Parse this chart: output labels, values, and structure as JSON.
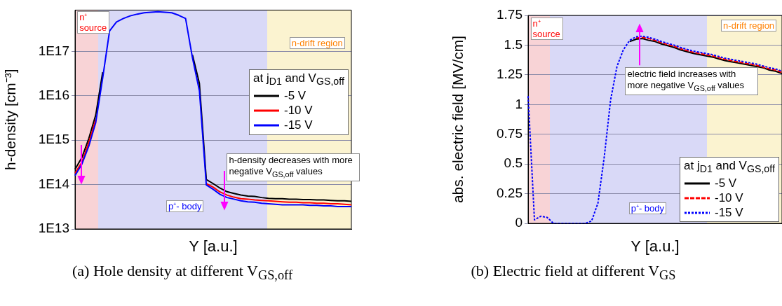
{
  "chart_data": [
    {
      "type": "line",
      "xlabel": "Y [a.u.]",
      "ylabel": "h-density [cm⁻³]",
      "legend_title": "at j$_{D1}$ and V$_{GS,off}$",
      "legend": "right",
      "log": "y",
      "grid": "y",
      "marker": "none",
      "tick_labels": "y",
      "categories": [
        null,
        null,
        null,
        null,
        null,
        null,
        null,
        null,
        null,
        null,
        null,
        null,
        null,
        null,
        null,
        null,
        null,
        null,
        null,
        null,
        null,
        null,
        null,
        null,
        null,
        null,
        null,
        null,
        null,
        null,
        null,
        null,
        null,
        null,
        null,
        null,
        null,
        null,
        null,
        null,
        null
      ],
      "ylim": [
        10000000000000.0,
        8.5e+17
      ],
      "yticks": [
        {
          "value": 10000000000000.0,
          "label": "1E13"
        },
        {
          "value": 100000000000000.0,
          "label": "1E14"
        },
        {
          "value": 1000000000000000.0,
          "label": "1E15"
        },
        {
          "value": 1e+16,
          "label": "1E16"
        },
        {
          "value": 1e+17,
          "label": "1E17"
        }
      ],
      "series": [
        {
          "name": "-5 V",
          "color": "#000000",
          "values": [
            220000000000000.0,
            410000000000000.0,
            1100000000000000.0,
            3700000000000000.0,
            3.4e+16,
            null,
            null,
            null,
            null,
            null,
            null,
            null,
            null,
            null,
            null,
            null,
            null,
            8.3e+16,
            1.9e+16,
            130000000000000.0,
            105000000000000.0,
            83000000000000.0,
            69000000000000.0,
            63000000000000.0,
            58000000000000.0,
            55000000000000.0,
            54000000000000.0,
            51000000000000.0,
            49000000000000.0,
            48000000000000.0,
            48000000000000.0,
            47000000000000.0,
            47000000000000.0,
            46000000000000.0,
            46000000000000.0,
            45000000000000.0,
            45000000000000.0,
            44000000000000.0,
            43000000000000.0,
            43000000000000.0,
            42000000000000.0
          ]
        },
        {
          "name": "-10 V",
          "color": "#ff0000",
          "values": [
            180000000000000.0,
            320000000000000.0,
            890000000000000.0,
            2900000000000000.0,
            null,
            null,
            null,
            null,
            null,
            null,
            null,
            null,
            null,
            null,
            null,
            null,
            null,
            null,
            null,
            105000000000000.0,
            87000000000000.0,
            68000000000000.0,
            58000000000000.0,
            52000000000000.0,
            48000000000000.0,
            47000000000000.0,
            45000000000000.0,
            44000000000000.0,
            43000000000000.0,
            42000000000000.0,
            41000000000000.0,
            40000000000000.0,
            40000000000000.0,
            39000000000000.0,
            39000000000000.0,
            38000000000000.0,
            38000000000000.0,
            37000000000000.0,
            37000000000000.0,
            36000000000000.0,
            35000000000000.0
          ]
        },
        {
          "name": "-15 V",
          "color": "#0000ff",
          "values": [
            160000000000000.0,
            290000000000000.0,
            740000000000000.0,
            2500000000000000.0,
            2.5e+16,
            2.9e+17,
            4.6e+17,
            5.5e+17,
            6.3e+17,
            6.9e+17,
            7.4e+17,
            7.6e+17,
            7.8e+17,
            7.6e+17,
            7.4e+17,
            6.5e+17,
            5.5e+17,
            7.1e+16,
            1.3e+16,
            98000000000000.0,
            78000000000000.0,
            60000000000000.0,
            51000000000000.0,
            47000000000000.0,
            43000000000000.0,
            41000000000000.0,
            40000000000000.0,
            38000000000000.0,
            37000000000000.0,
            36000000000000.0,
            35000000000000.0,
            35000000000000.0,
            35000000000000.0,
            35000000000000.0,
            34000000000000.0,
            34000000000000.0,
            33000000000000.0,
            33000000000000.0,
            32000000000000.0,
            32000000000000.0,
            32000000000000.0
          ]
        }
      ],
      "annotations": [
        "n⁺ source",
        "p⁺- body",
        "n-drift region",
        "h-density decreases with more negative V$_{GS,off}$ values",
        "(a) Hole density at different V$_{GS,off}$"
      ]
    },
    {
      "type": "line",
      "xlabel": "Y [a.u.]",
      "ylabel": "abs. electric field [MV/cm]",
      "legend_title": "at j$_{D1}$ and V$_{GS,off}$",
      "legend": "bottom right",
      "grid": "y",
      "marker": "none",
      "tick_labels": "y",
      "categories": [
        null,
        null,
        null,
        null,
        null,
        null,
        null,
        null,
        null,
        null,
        null,
        null,
        null,
        null,
        null,
        null,
        null,
        null,
        null,
        null,
        null,
        null,
        null,
        null,
        null,
        null,
        null,
        null,
        null,
        null,
        null,
        null,
        null,
        null,
        null,
        null,
        null,
        null,
        null,
        null,
        null
      ],
      "ylim": [
        0,
        1.75
      ],
      "yticks": [
        0,
        0.25,
        0.5,
        0.75,
        1,
        1.25,
        1.5,
        1.75
      ],
      "series": [
        {
          "name": "-5 V",
          "color": "#000000",
          "line_style": "solid",
          "values": [
            null,
            null,
            null,
            null,
            null,
            null,
            null,
            null,
            null,
            null,
            null,
            null,
            null,
            null,
            null,
            null,
            1.53,
            1.55,
            1.555,
            1.54,
            1.53,
            1.51,
            1.495,
            1.48,
            1.46,
            1.445,
            1.43,
            1.42,
            1.41,
            1.4,
            1.385,
            1.37,
            1.36,
            1.35,
            1.34,
            1.33,
            1.32,
            1.31,
            1.29,
            1.28,
            1.26
          ]
        },
        {
          "name": "-10 V",
          "color": "#ff0000",
          "line_style": "dashed",
          "values": [
            null,
            null,
            null,
            null,
            null,
            null,
            null,
            null,
            null,
            null,
            null,
            null,
            null,
            null,
            null,
            null,
            null,
            1.56,
            1.565,
            1.555,
            1.54,
            1.52,
            1.505,
            1.49,
            1.47,
            1.455,
            1.44,
            1.43,
            1.42,
            1.41,
            1.395,
            1.38,
            1.37,
            1.36,
            1.35,
            1.34,
            1.33,
            1.315,
            1.3,
            1.29,
            1.27
          ]
        },
        {
          "name": "-15 V",
          "color": "#0000ff",
          "line_style": "dotted",
          "values": [
            1.07,
            0.03,
            0.06,
            0.05,
            0,
            0,
            0,
            0,
            0,
            0,
            0.02,
            0.17,
            0.56,
            1.04,
            1.32,
            1.46,
            1.54,
            1.57,
            1.575,
            1.565,
            1.55,
            1.53,
            1.515,
            1.5,
            1.48,
            1.465,
            1.45,
            1.44,
            1.43,
            1.42,
            1.405,
            1.39,
            1.38,
            1.37,
            1.36,
            1.35,
            1.34,
            1.325,
            1.31,
            1.3,
            1.28
          ]
        }
      ],
      "annotations": [
        "n⁺ source",
        "p⁺- body",
        "n-drift region",
        "electric field increases with more negative V$_{GS,off}$ values",
        "(b) Electric field at different V$_{GS}$"
      ]
    }
  ]
}
